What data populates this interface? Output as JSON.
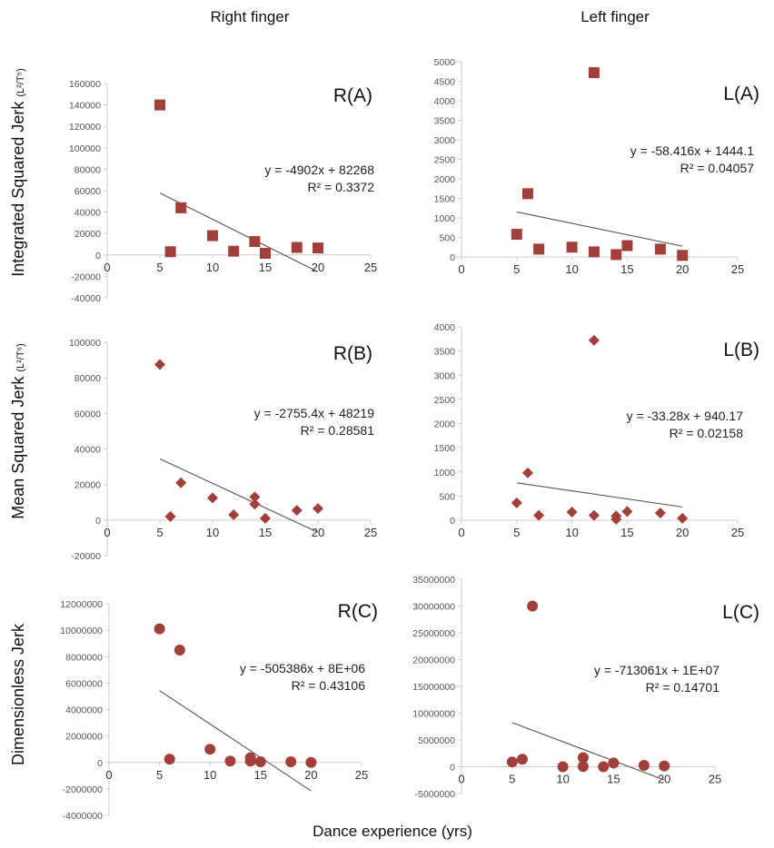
{
  "column_titles": [
    "Right finger",
    "Left finger"
  ],
  "row_ylabels": [
    {
      "main": "Integrated Squared Jerk ",
      "unit": "(L²/T⁵)"
    },
    {
      "main": "Mean Squared Jerk ",
      "unit": "(L²/T⁶)"
    },
    {
      "main": "Dimensionless Jerk",
      "unit": ""
    }
  ],
  "xlabel": "Dance experience (yrs)",
  "colors": {
    "marker": "#a33f3b",
    "trendline": "#555555",
    "axis": "#cccccc"
  },
  "chart_data": [
    {
      "type": "scatter",
      "panel": "R(A)",
      "marker": "square",
      "xlim": [
        0,
        25
      ],
      "xticks": [
        0,
        5,
        10,
        15,
        20,
        25
      ],
      "ylim": [
        -40000,
        160000
      ],
      "yticks": [
        -40000,
        -20000,
        0,
        20000,
        40000,
        60000,
        80000,
        100000,
        120000,
        140000,
        160000
      ],
      "x": [
        5,
        6,
        7,
        10,
        12,
        14,
        15,
        18,
        20
      ],
      "y": [
        140000,
        3000,
        44000,
        18000,
        3500,
        12500,
        1500,
        7000,
        6500
      ],
      "trendline": {
        "slope": -4902,
        "intercept": 82268,
        "x_range": [
          5,
          20
        ]
      },
      "equation": "y = -4902x + 82268",
      "r2": "R² = 0.3372"
    },
    {
      "type": "scatter",
      "panel": "L(A)",
      "marker": "square",
      "xlim": [
        0,
        25
      ],
      "xticks": [
        0,
        5,
        10,
        15,
        20,
        25
      ],
      "ylim": [
        0,
        5000
      ],
      "yticks": [
        0,
        500,
        1000,
        1500,
        2000,
        2500,
        3000,
        3500,
        4000,
        4500,
        5000
      ],
      "x": [
        5,
        6,
        7,
        10,
        12,
        12,
        14,
        15,
        18,
        20
      ],
      "y": [
        580,
        1620,
        200,
        250,
        4720,
        130,
        60,
        290,
        200,
        40
      ],
      "trendline": {
        "slope": -58.416,
        "intercept": 1444.1,
        "x_range": [
          5,
          20
        ]
      },
      "equation": "y = -58.416x + 1444.1",
      "r2": "R² = 0.04057"
    },
    {
      "type": "scatter",
      "panel": "R(B)",
      "marker": "diamond",
      "xlim": [
        0,
        25
      ],
      "xticks": [
        0,
        5,
        10,
        15,
        20,
        25
      ],
      "ylim": [
        -20000,
        100000
      ],
      "yticks": [
        -20000,
        0,
        20000,
        40000,
        60000,
        80000,
        100000
      ],
      "x": [
        5,
        6,
        7,
        10,
        12,
        14,
        14,
        15,
        18,
        20
      ],
      "y": [
        87500,
        2000,
        21000,
        12500,
        3000,
        13000,
        9000,
        1000,
        5500,
        6500
      ],
      "trendline": {
        "slope": -2755.4,
        "intercept": 48219,
        "x_range": [
          5,
          20
        ]
      },
      "equation": "y = -2755.4x + 48219",
      "r2": "R² = 0.28581"
    },
    {
      "type": "scatter",
      "panel": "L(B)",
      "marker": "diamond",
      "xlim": [
        0,
        25
      ],
      "xticks": [
        0,
        5,
        10,
        15,
        20,
        25
      ],
      "ylim": [
        0,
        4000
      ],
      "yticks": [
        0,
        500,
        1000,
        1500,
        2000,
        2500,
        3000,
        3500,
        4000
      ],
      "x": [
        5,
        6,
        7,
        10,
        12,
        12,
        14,
        14,
        15,
        18,
        20
      ],
      "y": [
        360,
        980,
        100,
        170,
        3720,
        100,
        90,
        20,
        180,
        150,
        40
      ],
      "trendline": {
        "slope": -33.28,
        "intercept": 940.17,
        "x_range": [
          5,
          20
        ]
      },
      "equation": "y = -33.28x + 940.17",
      "r2": "R² = 0.02158"
    },
    {
      "type": "scatter",
      "panel": "R(C)",
      "marker": "circle",
      "xlim": [
        0,
        25
      ],
      "xticks": [
        0,
        5,
        10,
        15,
        20,
        25
      ],
      "ylim": [
        -4000000,
        12000000
      ],
      "yticks": [
        -4000000,
        -2000000,
        0,
        2000000,
        4000000,
        6000000,
        8000000,
        10000000,
        12000000
      ],
      "x": [
        5,
        6,
        7,
        10,
        12,
        14,
        14,
        15,
        18,
        20
      ],
      "y": [
        10100000,
        250000,
        8500000,
        1000000,
        100000,
        350000,
        100000,
        50000,
        50000,
        0
      ],
      "trendline": {
        "slope": -505386,
        "intercept": 7960000,
        "x_range": [
          5,
          20
        ]
      },
      "equation": "y = -505386x + 8E+06",
      "r2": "R² = 0.43106"
    },
    {
      "type": "scatter",
      "panel": "L(C)",
      "marker": "circle",
      "xlim": [
        0,
        25
      ],
      "xticks": [
        0,
        5,
        10,
        15,
        20,
        25
      ],
      "ylim": [
        -5000000,
        35000000
      ],
      "yticks": [
        -5000000,
        0,
        5000000,
        10000000,
        15000000,
        20000000,
        25000000,
        30000000,
        35000000
      ],
      "x": [
        5,
        6,
        7,
        10,
        12,
        12,
        14,
        15,
        18,
        20
      ],
      "y": [
        900000,
        1400000,
        30000000,
        0,
        1700000,
        50000,
        0,
        700000,
        250000,
        150000
      ],
      "trendline": {
        "slope": -713061,
        "intercept": 11800000,
        "x_range": [
          5,
          20
        ]
      },
      "equation": "y = -713061x + 1E+07",
      "r2": "R² = 0.14701"
    }
  ]
}
